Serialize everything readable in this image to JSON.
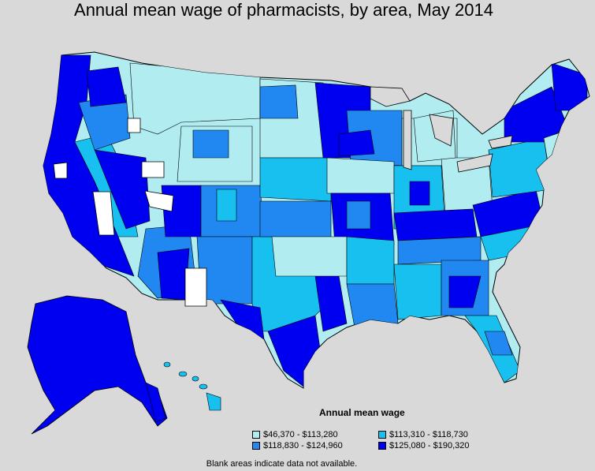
{
  "title": "Annual mean wage of pharmacists, by area, May 2014",
  "legend": {
    "title": "Annual mean wage",
    "items": [
      {
        "label": "$46,370 - $113,280",
        "color": "#b0ecf0"
      },
      {
        "label": "$113,310 - $118,730",
        "color": "#18c0f0"
      },
      {
        "label": "$118,830 - $124,960",
        "color": "#2088f0"
      },
      {
        "label": "$125,080 - $190,320",
        "color": "#0000f0"
      }
    ]
  },
  "note": "Blank areas indicate data not available.",
  "colors": {
    "background": "#d9d9d9",
    "no_data": "#ffffff",
    "border": "#000000"
  }
}
